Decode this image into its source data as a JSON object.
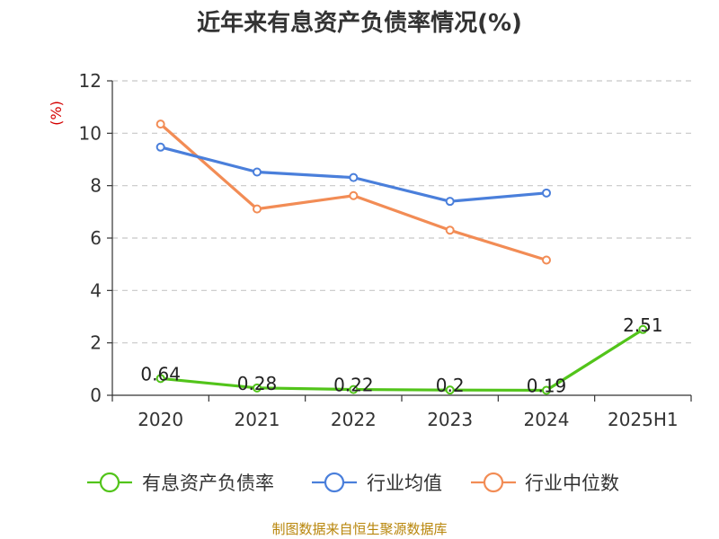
{
  "chart_data": {
    "type": "line",
    "title": "近年来有息资产负债率情况(%)",
    "xlabel": "",
    "ylabel": "(%)",
    "ylim": [
      0,
      12
    ],
    "yticks": [
      0,
      2,
      4,
      6,
      8,
      10,
      12
    ],
    "categories": [
      "2020",
      "2021",
      "2022",
      "2023",
      "2024",
      "2025H1"
    ],
    "grid": true,
    "legend_position": "bottom",
    "series": [
      {
        "name": "有息资产负债率",
        "color": "#52c41a",
        "values": [
          0.64,
          0.28,
          0.22,
          0.2,
          0.19,
          2.51
        ],
        "data_labels": [
          "0.64",
          "0.28",
          "0.22",
          "0.2",
          "0.19",
          "2.51"
        ]
      },
      {
        "name": "行业均值",
        "color": "#4a7fdb",
        "values": [
          9.47,
          8.52,
          8.31,
          7.4,
          7.72,
          null
        ]
      },
      {
        "name": "行业中位数",
        "color": "#f28c55",
        "values": [
          10.35,
          7.11,
          7.62,
          6.3,
          5.16,
          null
        ]
      }
    ],
    "source": "制图数据来自恒生聚源数据库"
  }
}
